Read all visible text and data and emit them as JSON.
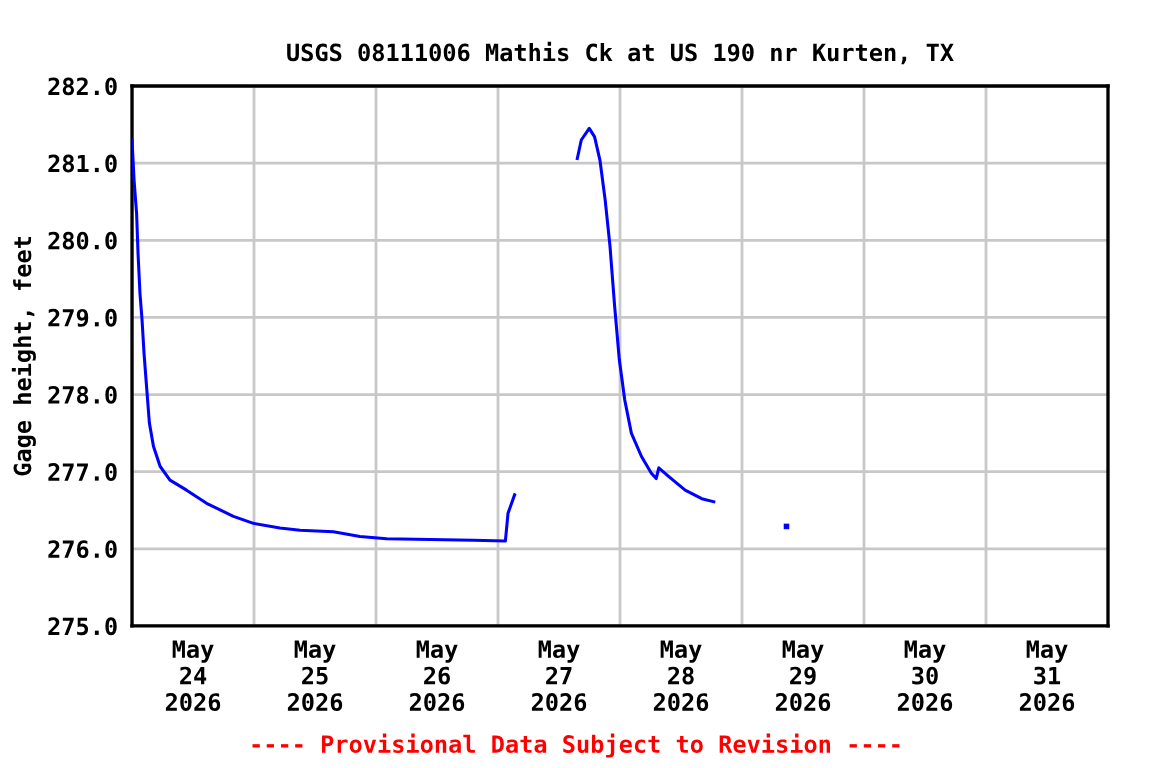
{
  "chart_data": {
    "type": "line",
    "title": "USGS 08111006 Mathis Ck at US 190 nr Kurten, TX",
    "ylabel": "Gage height, feet",
    "annotations": [
      "---- Provisional Data Subject to Revision ----"
    ],
    "grid": true,
    "marker": "none",
    "line_style": "solid",
    "xlim": [
      "2026-05-24T00:00",
      "2026-06-01T00:00"
    ],
    "xticks": [
      {
        "value": "2026-05-24T00:00",
        "label": null
      },
      {
        "value": "2026-05-24T12:00",
        "label": "May\n24\n2026"
      },
      {
        "value": "2026-05-25T00:00",
        "label": null
      },
      {
        "value": "2026-05-25T12:00",
        "label": "May\n25\n2026"
      },
      {
        "value": "2026-05-26T00:00",
        "label": null
      },
      {
        "value": "2026-05-26T12:00",
        "label": "May\n26\n2026"
      },
      {
        "value": "2026-05-27T00:00",
        "label": null
      },
      {
        "value": "2026-05-27T12:00",
        "label": "May\n27\n2026"
      },
      {
        "value": "2026-05-28T00:00",
        "label": null
      },
      {
        "value": "2026-05-28T12:00",
        "label": "May\n28\n2026"
      },
      {
        "value": "2026-05-29T00:00",
        "label": null
      },
      {
        "value": "2026-05-29T12:00",
        "label": "May\n29\n2026"
      },
      {
        "value": "2026-05-30T00:00",
        "label": null
      },
      {
        "value": "2026-05-30T12:00",
        "label": "May\n30\n2026"
      },
      {
        "value": "2026-05-31T00:00",
        "label": null
      },
      {
        "value": "2026-05-31T12:00",
        "label": "May\n31\n2026"
      }
    ],
    "ylim": [
      275,
      282
    ],
    "yticks": [
      {
        "value": 275,
        "label": "275.0"
      },
      {
        "value": 276,
        "label": "276.0"
      },
      {
        "value": 277,
        "label": "277.0"
      },
      {
        "value": 278,
        "label": "278.0"
      },
      {
        "value": 279,
        "label": "279.0"
      },
      {
        "value": 280,
        "label": "280.0"
      },
      {
        "value": 281,
        "label": "281.0"
      },
      {
        "value": 282,
        "label": "282.0"
      }
    ],
    "x": [
      "2026-05-24T00:00",
      "2026-05-24T00:24",
      "2026-05-24T00:54",
      "2026-05-24T01:11",
      "2026-05-24T01:34",
      "2026-05-24T01:58",
      "2026-05-24T02:22",
      "2026-05-24T02:52",
      "2026-05-24T03:25",
      "2026-05-24T04:13",
      "2026-05-24T05:31",
      "2026-05-24T07:28",
      "2026-05-24T10:44",
      "2026-05-24T14:40",
      "2026-05-24T19:57",
      "2026-05-24T23:53",
      "2026-05-25T05:06",
      "2026-05-25T09:03",
      "2026-05-25T15:37",
      "2026-05-25T20:51",
      "2026-05-26T02:05",
      "2026-05-26T19:09",
      "2026-05-27T01:27",
      "2026-05-27T01:58",
      "2026-05-27T03:16",
      "2026-05-27T09:00",
      "2026-05-27T15:36",
      "2026-05-27T16:23",
      "2026-05-27T17:57",
      "2026-05-27T19:00",
      "2026-05-27T20:03",
      "2026-05-27T21:05",
      "2026-05-27T22:02",
      "2026-05-27T22:57",
      "2026-05-27T23:52",
      "2026-05-28T00:56",
      "2026-05-28T02:14",
      "2026-05-28T04:12",
      "2026-05-28T06:10",
      "2026-05-28T07:07",
      "2026-05-28T07:38",
      "2026-05-28T09:33",
      "2026-05-28T12:49",
      "2026-05-28T16:05",
      "2026-05-28T18:27"
    ],
    "series": [
      {
        "color": "#0000ff",
        "values": [
          281.3,
          280.78,
          280.35,
          279.83,
          279.31,
          278.97,
          278.53,
          278.1,
          277.63,
          277.33,
          277.07,
          276.89,
          276.76,
          276.59,
          276.42,
          276.33,
          276.27,
          276.24,
          276.22,
          276.16,
          276.13,
          276.11,
          276.1,
          276.46,
          276.7,
          null,
          281.06,
          281.3,
          281.45,
          281.34,
          281.04,
          280.52,
          279.92,
          279.14,
          278.45,
          277.93,
          277.5,
          277.2,
          276.98,
          276.91,
          277.05,
          276.94,
          276.76,
          276.65,
          276.61
        ]
      },
      {
        "type": "scatter",
        "marker": "square",
        "color": "#0000ff",
        "x": [
          "2026-05-29T08:45"
        ],
        "values": [
          276.29
        ]
      }
    ]
  }
}
